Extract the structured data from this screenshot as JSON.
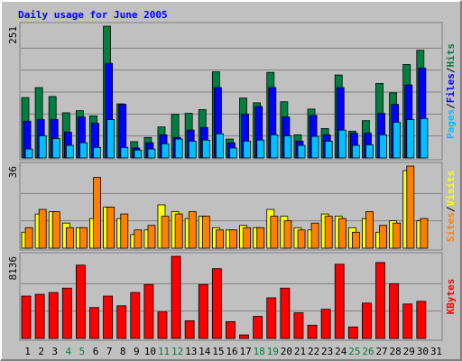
{
  "chart_data": [
    {
      "type": "bar",
      "title": "Daily usage for June 2005",
      "categories": [
        "1",
        "2",
        "3",
        "4",
        "5",
        "6",
        "7",
        "8",
        "9",
        "10",
        "11",
        "12",
        "13",
        "14",
        "15",
        "16",
        "17",
        "18",
        "19",
        "20",
        "21",
        "22",
        "23",
        "24",
        "25",
        "26",
        "27",
        "28",
        "29",
        "30",
        "31"
      ],
      "category_colors": [
        "#000000",
        "#000000",
        "#000000",
        "#008040",
        "#008040",
        "#000000",
        "#000000",
        "#000000",
        "#000000",
        "#000000",
        "#008040",
        "#008040",
        "#000000",
        "#000000",
        "#000000",
        "#000000",
        "#000000",
        "#008040",
        "#008040",
        "#000000",
        "#000000",
        "#000000",
        "#000000",
        "#000000",
        "#008040",
        "#008040",
        "#000000",
        "#000000",
        "#000000",
        "#000000",
        "#000000"
      ],
      "legend_separator": "/",
      "ylim": [
        0,
        251
      ],
      "yticks": [
        251
      ],
      "grid_lines": 6,
      "series": [
        {
          "name": "Hits",
          "color": "#008040",
          "values": [
            115,
            134,
            117,
            86,
            90,
            80,
            251,
            103,
            31,
            39,
            59,
            83,
            85,
            92,
            164,
            36,
            114,
            105,
            163,
            107,
            44,
            93,
            56,
            158,
            51,
            71,
            142,
            124,
            178,
            205,
            0
          ]
        },
        {
          "name": "Files",
          "color": "#0000ff",
          "values": [
            70,
            73,
            73,
            49,
            78,
            66,
            180,
            102,
            19,
            29,
            44,
            39,
            53,
            58,
            134,
            29,
            83,
            98,
            134,
            78,
            32,
            81,
            44,
            134,
            47,
            47,
            85,
            102,
            139,
            171,
            0
          ]
        },
        {
          "name": "Pages",
          "color": "#00c0ff",
          "values": [
            17,
            42,
            37,
            24,
            29,
            20,
            73,
            20,
            15,
            17,
            27,
            36,
            32,
            34,
            46,
            19,
            32,
            34,
            44,
            42,
            24,
            41,
            32,
            53,
            24,
            25,
            44,
            68,
            73,
            75,
            0
          ]
        }
      ]
    },
    {
      "type": "bar",
      "ylim": [
        0,
        36
      ],
      "yticks": [
        36
      ],
      "grid_lines": 3,
      "series": [
        {
          "name": "Visits",
          "color": "#ffff00",
          "values": [
            7,
            15,
            16,
            11,
            9,
            13,
            18,
            13,
            6,
            8,
            19,
            16,
            13,
            14,
            9,
            8,
            10,
            9,
            17,
            14,
            9,
            8,
            15,
            14,
            9,
            13,
            7,
            12,
            34,
            12,
            0
          ]
        },
        {
          "name": "Sites",
          "color": "#ff8000",
          "values": [
            9,
            17,
            16,
            9,
            9,
            31,
            18,
            15,
            8,
            10,
            14,
            15,
            16,
            14,
            8,
            8,
            9,
            9,
            14,
            12,
            8,
            11,
            14,
            13,
            7,
            16,
            10,
            11,
            36,
            13,
            0
          ]
        }
      ]
    },
    {
      "type": "bar",
      "ylim": [
        0,
        8136
      ],
      "yticks": [
        8136
      ],
      "grid_lines": 3,
      "series": [
        {
          "name": "KBytes",
          "color": "#ff0000",
          "values": [
            4198,
            4373,
            4548,
            4986,
            7260,
            3061,
            4198,
            3236,
            4548,
            5336,
            2624,
            8136,
            1750,
            5336,
            6910,
            1662,
            350,
            2187,
            4023,
            4986,
            2537,
            1312,
            2887,
            7348,
            1137,
            3499,
            7523,
            5423,
            3411,
            3674,
            0
          ]
        }
      ]
    }
  ]
}
